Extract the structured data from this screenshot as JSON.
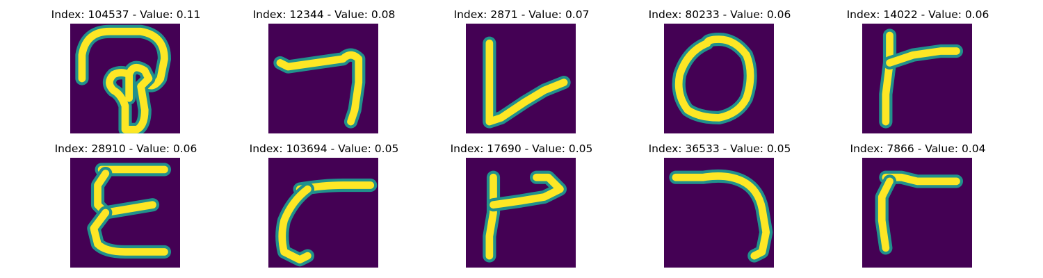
{
  "chart_data": {
    "type": "image-grid",
    "colormap": "viridis",
    "colors": {
      "background": "#440154",
      "mid": "#21918c",
      "high": "#fde725"
    },
    "panels": [
      {
        "title": "Index: 104537 - Value: 0.11",
        "index": 104537,
        "value": 0.11
      },
      {
        "title": "Index: 12344 - Value: 0.08",
        "index": 12344,
        "value": 0.08
      },
      {
        "title": "Index: 2871 - Value: 0.07",
        "index": 2871,
        "value": 0.07
      },
      {
        "title": "Index: 80233 - Value: 0.06",
        "index": 80233,
        "value": 0.06
      },
      {
        "title": "Index: 14022 - Value: 0.06",
        "index": 14022,
        "value": 0.06
      },
      {
        "title": "Index: 28910 - Value: 0.06",
        "index": 28910,
        "value": 0.06
      },
      {
        "title": "Index: 103694 - Value: 0.05",
        "index": 103694,
        "value": 0.05
      },
      {
        "title": "Index: 17690 - Value: 0.05",
        "index": 17690,
        "value": 0.05
      },
      {
        "title": "Index: 36533 - Value: 0.05",
        "index": 36533,
        "value": 0.05
      },
      {
        "title": "Index: 7866 - Value: 0.04",
        "index": 7866,
        "value": 0.04
      }
    ]
  }
}
